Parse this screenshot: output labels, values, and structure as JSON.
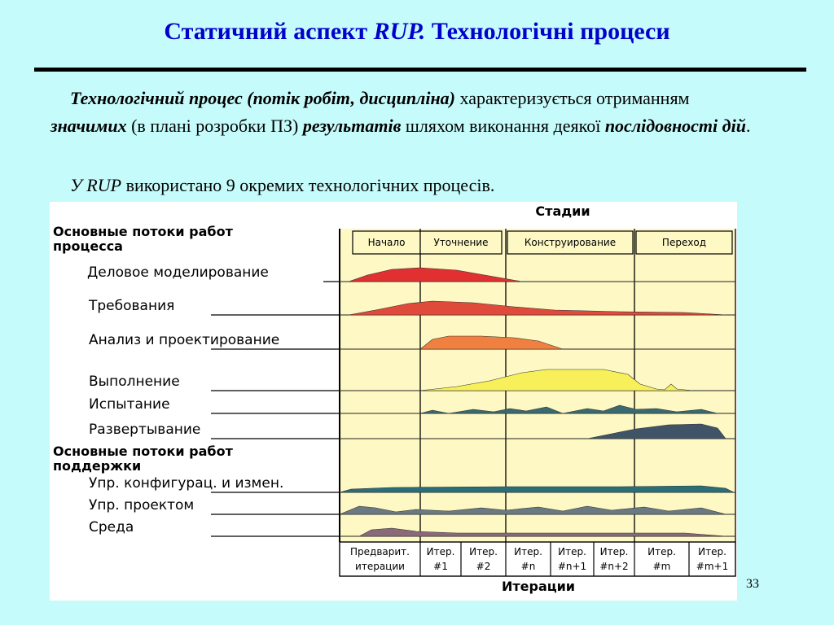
{
  "title": {
    "text": "Статичний аспект",
    "rup": "RUP.",
    "rest": "Технологічні процеси"
  },
  "paragraph1": {
    "t1": "Технологічний процес (потік робіт, дисципліна)",
    "t2": " характеризується отриманням ",
    "t3": "значимих",
    "t4": " (в плані розробки ПЗ) ",
    "t5": "результатів",
    "t6": " шляхом виконання деякої ",
    "t7": "послідовності дій",
    "t8": "."
  },
  "paragraph2": {
    "t1": "У RUP",
    "t2": " використано 9 окремих технологічних процесів."
  },
  "diagram": {
    "phases_title": "Стадии",
    "phases": [
      "Начало",
      "Уточнение",
      "Конструирование",
      "Переход"
    ],
    "process_heading": [
      "Основные потоки работ",
      "процесса"
    ],
    "support_heading": [
      "Основные потоки работ",
      "поддержки"
    ],
    "workflows": [
      {
        "label": "Деловое моделирование",
        "color": "#e03030"
      },
      {
        "label": "Требования",
        "color": "#e04a3a"
      },
      {
        "label": "Анализ и проектирование",
        "color": "#f08040"
      },
      {
        "label": "Выполнение",
        "color": "#f7f05a"
      },
      {
        "label": "Испытание",
        "color": "#3a6a70"
      },
      {
        "label": "Развертывание",
        "color": "#405468"
      },
      {
        "label": "Упр. конфигурац. и измен.",
        "color": "#2a6f78"
      },
      {
        "label": "Упр. проектом",
        "color": "#6a7a82"
      },
      {
        "label": "Среда",
        "color": "#8a6a7a"
      }
    ],
    "iterations": [
      [
        "Предварит.",
        "итерации"
      ],
      [
        "Итер.",
        "#1"
      ],
      [
        "Итер.",
        "#2"
      ],
      [
        "Итер.",
        "#n"
      ],
      [
        "Итер.",
        "#n+1"
      ],
      [
        "Итер.",
        "#n+2"
      ],
      [
        "Итер.",
        "#m"
      ],
      [
        "Итер.",
        "#m+1"
      ]
    ],
    "iterations_title": "Итерации",
    "colors": {
      "background": "#fdf8c4",
      "grid": "#b0b0a0"
    }
  },
  "page_number": "33"
}
